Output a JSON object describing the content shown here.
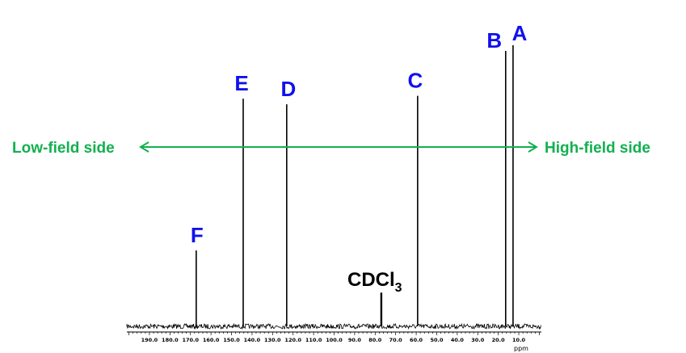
{
  "chart_data": {
    "type": "line",
    "title": "",
    "xlabel": "ppm",
    "ylabel": "",
    "xlim": [
      201,
      -1
    ],
    "x_reversed": true,
    "grid": false,
    "xticks": [
      190.0,
      180.0,
      170.0,
      160.0,
      150.0,
      140.0,
      130.0,
      120.0,
      110.0,
      100.0,
      90.0,
      80.0,
      70.0,
      60.0,
      50.0,
      40.0,
      30.0,
      20.0,
      10.0
    ],
    "xtick_labels": [
      "190.0",
      "180.0",
      "170.0",
      "160.0",
      "150.0",
      "140.0",
      "130.0",
      "120.0",
      "110.0",
      "100.0",
      "90.0",
      "80.0",
      "70.0",
      "60.0",
      "50.0",
      "40.0",
      "30.0",
      "20.0",
      "10.0"
    ],
    "peaks": [
      {
        "label": "F",
        "ppm": 167.2,
        "intensity": 0.27
      },
      {
        "label": "E",
        "ppm": 144.3,
        "intensity": 0.81
      },
      {
        "label": "D",
        "ppm": 123.1,
        "intensity": 0.79
      },
      {
        "label": "C",
        "ppm": 59.3,
        "intensity": 0.82
      },
      {
        "label": "B",
        "ppm": 16.4,
        "intensity": 0.98
      },
      {
        "label": "A",
        "ppm": 12.8,
        "intensity": 1.0
      }
    ],
    "solvent_peak": {
      "label_main": "CDCl",
      "label_sub": "3",
      "ppm": 77.0,
      "intensity": 0.12
    },
    "annotations": {
      "low_field": "Low-field side",
      "high_field": "High-field side"
    }
  },
  "colors": {
    "peak_label": "#1010ee",
    "arrow": "#12b04f",
    "spectrum": "#000000"
  }
}
